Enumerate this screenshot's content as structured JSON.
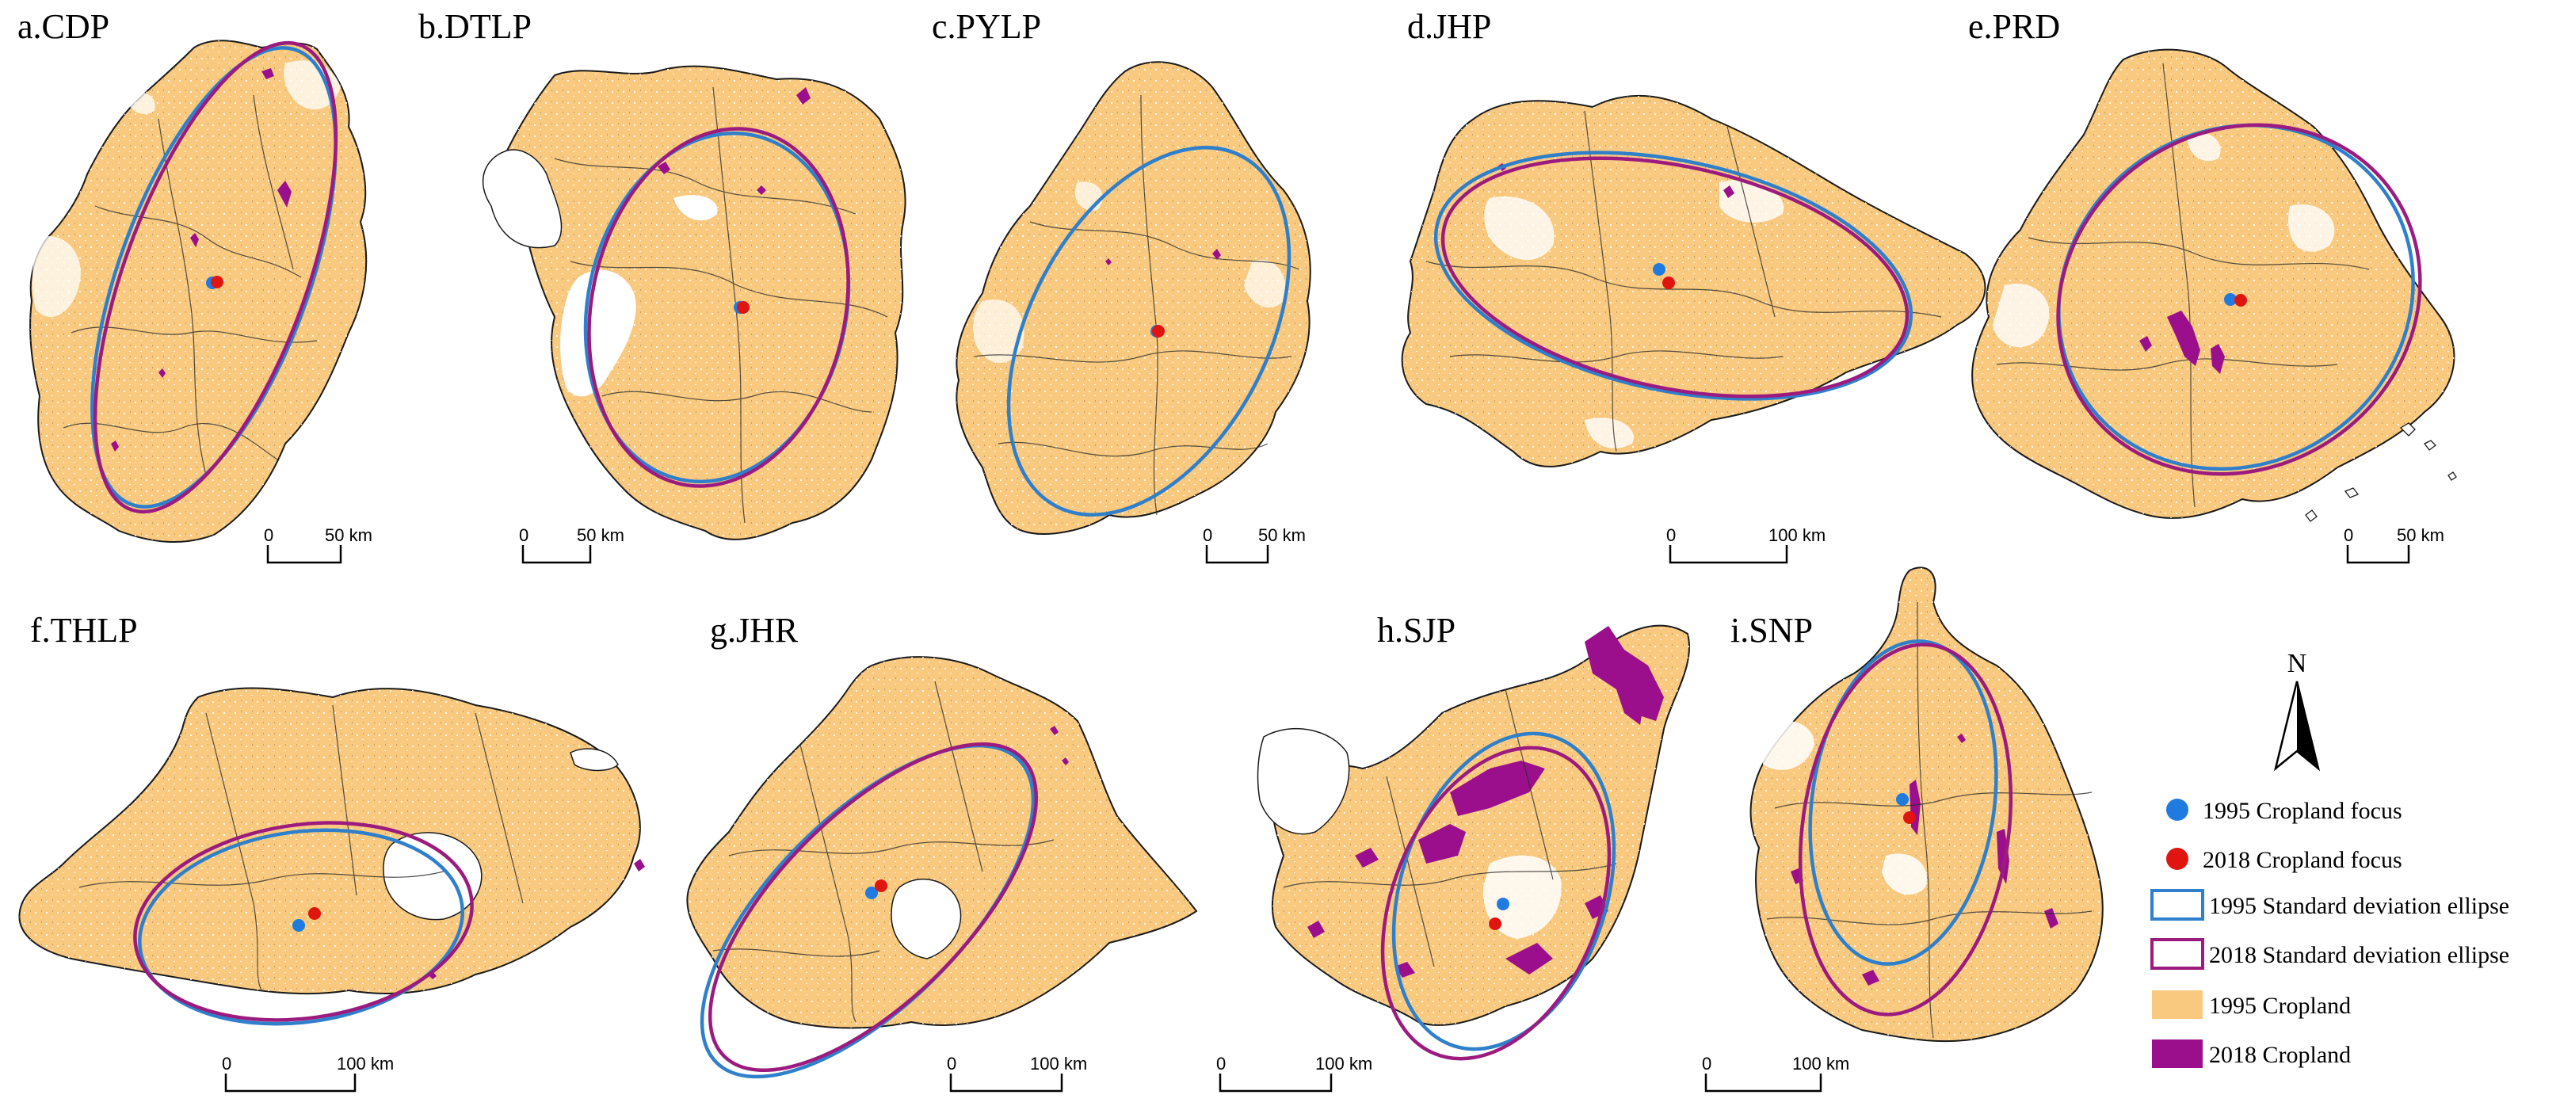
{
  "colors": {
    "cropland_1995": "#F8C97E",
    "cropland_2018": "#9B0F8C",
    "ellipse_1995": "#2F7FCB",
    "ellipse_2018": "#9C1B7E",
    "focus_1995": "#1F7BE0",
    "focus_2018": "#E0150F",
    "boundary": "#1a1a1a"
  },
  "panels": [
    {
      "id": "a",
      "title": "a.CDP",
      "scale": {
        "zero": "0",
        "end": "50 km"
      }
    },
    {
      "id": "b",
      "title": "b.DTLP",
      "scale": {
        "zero": "0",
        "end": "50 km"
      }
    },
    {
      "id": "c",
      "title": "c.PYLP",
      "scale": {
        "zero": "0",
        "end": "50 km"
      }
    },
    {
      "id": "d",
      "title": "d.JHP",
      "scale": {
        "zero": "0",
        "end": "100 km"
      }
    },
    {
      "id": "e",
      "title": "e.PRD",
      "scale": {
        "zero": "0",
        "end": "50 km"
      }
    },
    {
      "id": "f",
      "title": "f.THLP",
      "scale": {
        "zero": "0",
        "end": "100 km"
      }
    },
    {
      "id": "g",
      "title": "g.JHR",
      "scale": {
        "zero": "0",
        "end": "100 km"
      }
    },
    {
      "id": "h",
      "title": "h.SJP",
      "scale": {
        "zero": "0",
        "end": "100 km"
      }
    },
    {
      "id": "i",
      "title": "i.SNP",
      "scale": {
        "zero": "0",
        "end": "100 km"
      }
    }
  ],
  "north_arrow": {
    "label": "N"
  },
  "legend": [
    {
      "key": "focus_1995",
      "label": "1995 Cropland focus",
      "symbol": "dot",
      "color": "#1F7BE0"
    },
    {
      "key": "focus_2018",
      "label": "2018 Cropland focus",
      "symbol": "dot",
      "color": "#E0150F"
    },
    {
      "key": "ellipse_1995",
      "label": "1995 Standard deviation ellipse",
      "symbol": "outline",
      "color": "#2F7FCB"
    },
    {
      "key": "ellipse_2018",
      "label": "2018 Standard deviation ellipse",
      "symbol": "outline",
      "color": "#9C1B7E"
    },
    {
      "key": "cropland_1995",
      "label": "1995 Cropland",
      "symbol": "fill",
      "color": "#F8C97E"
    },
    {
      "key": "cropland_2018",
      "label": "2018 Cropland",
      "symbol": "fill",
      "color": "#9B0F8C"
    }
  ]
}
